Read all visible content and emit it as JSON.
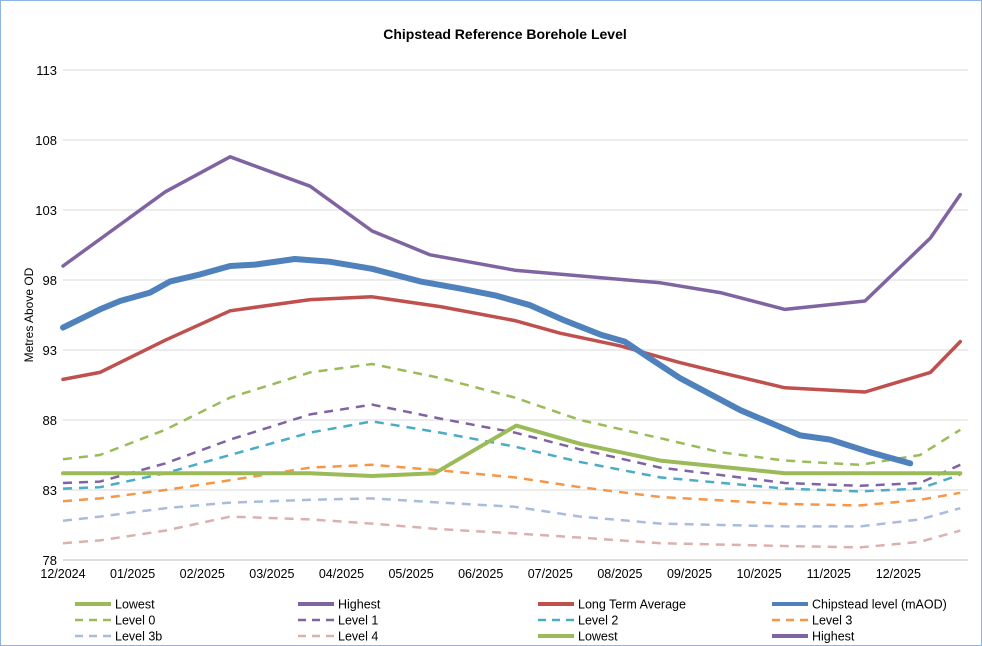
{
  "chart_data": {
    "type": "line",
    "title": "Chipstead Reference Borehole Level",
    "xlabel": "",
    "ylabel": "Metres Above OD",
    "ylim": [
      78,
      113
    ],
    "yticks": [
      78,
      83,
      88,
      93,
      98,
      103,
      108,
      113
    ],
    "xlim": [
      0,
      13
    ],
    "x_unit": "months since 12/2024",
    "categories": [
      "12/2024",
      "01/2025",
      "02/2025",
      "03/2025",
      "04/2025",
      "05/2025",
      "06/2025",
      "07/2025",
      "08/2025",
      "09/2025",
      "10/2025",
      "11/2025",
      "12/2025"
    ],
    "grid": "horizontal",
    "legend_placement": "bottom",
    "series": [
      {
        "name": "Lowest",
        "color": "#9BBB59",
        "style": "solid",
        "width": 4,
        "x": [
          0,
          3.55,
          4.44,
          5.34,
          6.51,
          7.43,
          8.58,
          10.37,
          12.89
        ],
        "y": [
          84.2,
          84.2,
          84.0,
          84.2,
          87.6,
          86.3,
          85.1,
          84.2,
          84.2
        ]
      },
      {
        "name": "Highest",
        "color": "#8064A2",
        "style": "solid",
        "width": 3.5,
        "x": [
          0,
          1.47,
          2.4,
          3.55,
          4.44,
          5.27,
          6.49,
          8.58,
          9.44,
          10.37,
          11.52,
          12.46,
          12.89
        ],
        "y": [
          99.0,
          104.3,
          106.8,
          104.7,
          101.5,
          99.8,
          98.7,
          97.8,
          97.1,
          95.9,
          96.5,
          101.0,
          104.1
        ]
      },
      {
        "name": "Long Term Average",
        "color": "#C0504D",
        "style": "solid",
        "width": 3.5,
        "x": [
          0,
          0.53,
          1.47,
          2.4,
          3.55,
          4.44,
          5.42,
          6.49,
          7.14,
          8.0,
          8.86,
          9.44,
          10.37,
          11.52,
          12.46,
          12.89
        ],
        "y": [
          90.9,
          91.4,
          93.7,
          95.8,
          96.6,
          96.8,
          96.1,
          95.1,
          94.2,
          93.3,
          92.1,
          91.4,
          90.3,
          90.0,
          91.4,
          93.6
        ]
      },
      {
        "name": "Chipstead level (mAOD)",
        "color": "#4F81BD",
        "style": "solid",
        "width": 6,
        "x": [
          0,
          0.53,
          0.82,
          1.25,
          1.54,
          1.97,
          2.4,
          2.76,
          3.33,
          3.84,
          4.44,
          5.13,
          5.7,
          6.21,
          6.71,
          7.21,
          7.72,
          8.07,
          8.43,
          8.86,
          9.73,
          10.59,
          11.02,
          11.59,
          12.17
        ],
        "y": [
          94.6,
          95.9,
          96.5,
          97.1,
          97.9,
          98.4,
          99.0,
          99.1,
          99.5,
          99.3,
          98.8,
          97.9,
          97.4,
          96.9,
          96.2,
          95.1,
          94.1,
          93.6,
          92.4,
          91.0,
          88.7,
          86.9,
          86.6,
          85.7,
          84.9
        ]
      },
      {
        "name": "Level 0",
        "color": "#9BBB59",
        "style": "dashed",
        "width": 2.5,
        "x": [
          0,
          0.53,
          1.47,
          2.4,
          3.55,
          4.44,
          5.42,
          6.49,
          7.43,
          8.58,
          9.44,
          10.37,
          11.45,
          12.31,
          12.89
        ],
        "y": [
          85.2,
          85.5,
          87.3,
          89.6,
          91.4,
          92.0,
          91.0,
          89.6,
          88.0,
          86.7,
          85.7,
          85.1,
          84.8,
          85.5,
          87.3
        ]
      },
      {
        "name": "Level 1",
        "color": "#8064A2",
        "style": "dashed",
        "width": 2.5,
        "x": [
          0,
          0.53,
          1.47,
          2.4,
          3.55,
          4.44,
          5.42,
          6.49,
          7.43,
          8.58,
          10.37,
          11.45,
          12.31,
          12.89
        ],
        "y": [
          83.5,
          83.6,
          84.9,
          86.6,
          88.4,
          89.1,
          88.1,
          87.1,
          85.9,
          84.6,
          83.5,
          83.3,
          83.5,
          84.8
        ]
      },
      {
        "name": "Level 2",
        "color": "#4BACC6",
        "style": "dashed",
        "width": 2.5,
        "x": [
          0,
          0.53,
          1.47,
          2.4,
          3.55,
          4.44,
          5.42,
          6.49,
          7.43,
          8.58,
          10.37,
          11.45,
          12.31,
          12.89
        ],
        "y": [
          83.1,
          83.2,
          84.2,
          85.5,
          87.1,
          87.9,
          87.1,
          86.1,
          85.0,
          83.9,
          83.1,
          82.9,
          83.1,
          84.1
        ]
      },
      {
        "name": "Level 3",
        "color": "#F79646",
        "style": "dashed",
        "width": 2.5,
        "x": [
          0,
          0.53,
          1.47,
          2.4,
          3.55,
          4.44,
          5.42,
          6.49,
          7.43,
          8.58,
          10.37,
          11.45,
          12.31,
          12.89
        ],
        "y": [
          82.2,
          82.4,
          83.0,
          83.7,
          84.6,
          84.8,
          84.4,
          83.9,
          83.2,
          82.5,
          82.0,
          81.9,
          82.3,
          82.8
        ]
      },
      {
        "name": "Level 3b",
        "color": "#A9BCDD",
        "style": "dashed",
        "width": 2.5,
        "x": [
          0,
          0.53,
          1.47,
          2.4,
          3.55,
          4.44,
          5.42,
          6.49,
          7.43,
          8.58,
          10.37,
          11.45,
          12.31,
          12.89
        ],
        "y": [
          80.8,
          81.1,
          81.7,
          82.1,
          82.3,
          82.4,
          82.1,
          81.8,
          81.1,
          80.6,
          80.4,
          80.4,
          80.9,
          81.7
        ]
      },
      {
        "name": "Level 4",
        "color": "#DBB1B0",
        "style": "dashed",
        "width": 2.5,
        "x": [
          0,
          0.53,
          1.47,
          2.4,
          3.55,
          4.44,
          5.42,
          6.49,
          7.43,
          8.58,
          10.37,
          11.45,
          12.31,
          12.89
        ],
        "y": [
          79.2,
          79.4,
          80.1,
          81.1,
          80.9,
          80.6,
          80.2,
          79.9,
          79.6,
          79.2,
          79.0,
          78.9,
          79.3,
          80.1
        ]
      }
    ],
    "legend": [
      {
        "name": "Lowest",
        "color": "#9BBB59",
        "style": "solid"
      },
      {
        "name": "Highest",
        "color": "#8064A2",
        "style": "solid"
      },
      {
        "name": "Long Term Average",
        "color": "#C0504D",
        "style": "solid"
      },
      {
        "name": "Chipstead level (mAOD)",
        "color": "#4F81BD",
        "style": "solid"
      },
      {
        "name": "Level 0",
        "color": "#9BBB59",
        "style": "dashed"
      },
      {
        "name": "Level 1",
        "color": "#8064A2",
        "style": "dashed"
      },
      {
        "name": "Level 2",
        "color": "#4BACC6",
        "style": "dashed"
      },
      {
        "name": "Level 3",
        "color": "#F79646",
        "style": "dashed"
      },
      {
        "name": "Level 3b",
        "color": "#A9BCDD",
        "style": "dashed"
      },
      {
        "name": "Level 4",
        "color": "#DBB1B0",
        "style": "dashed"
      },
      {
        "name": "Lowest",
        "color": "#9BBB59",
        "style": "solid"
      },
      {
        "name": "Highest",
        "color": "#8064A2",
        "style": "solid"
      }
    ]
  }
}
